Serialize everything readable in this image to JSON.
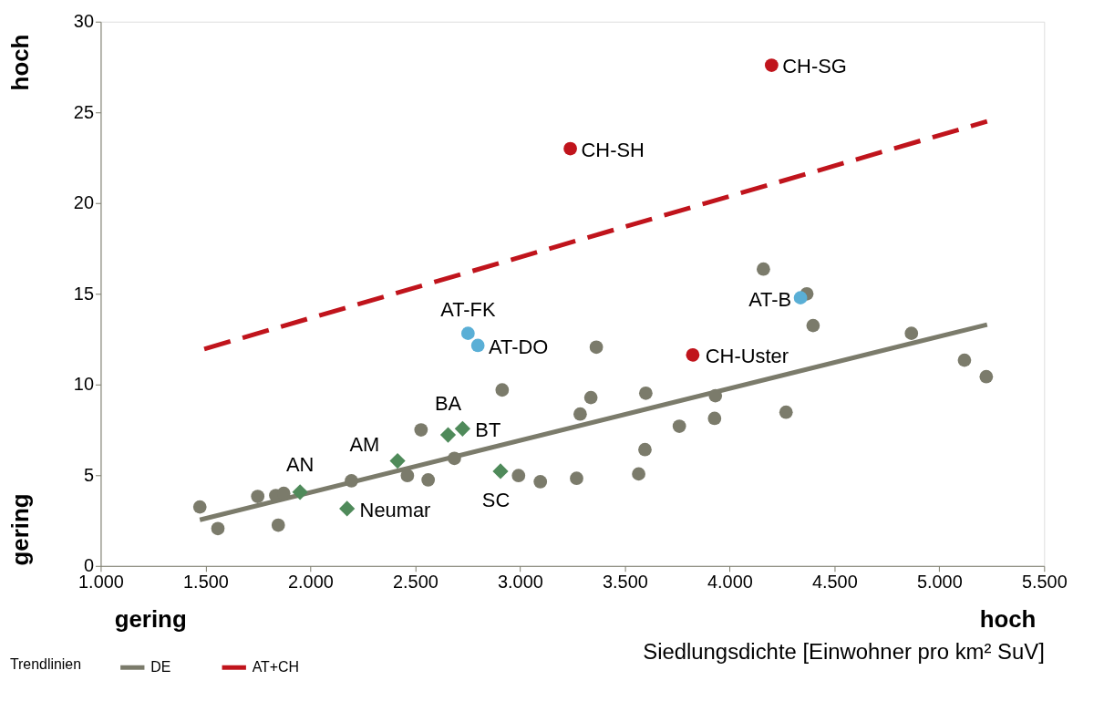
{
  "chart_data": {
    "type": "scatter",
    "xlabel": "Siedlungsdichte [Einwohner pro km² SuV]",
    "legend_title": "Trendlinien",
    "legend": "bottom left",
    "grid": false,
    "xlim": [
      1000,
      5500
    ],
    "xticks": [
      {
        "value": 1000,
        "label": "1.000"
      },
      {
        "value": 1500,
        "label": "1.500"
      },
      {
        "value": 2000,
        "label": "2.000"
      },
      {
        "value": 2500,
        "label": "2.500"
      },
      {
        "value": 3000,
        "label": "3.000"
      },
      {
        "value": 3500,
        "label": "3.500"
      },
      {
        "value": 4000,
        "label": "4.000"
      },
      {
        "value": 4500,
        "label": "4.500"
      },
      {
        "value": 5000,
        "label": "5.000"
      },
      {
        "value": 5500,
        "label": "5.500"
      }
    ],
    "ylim": [
      0,
      30
    ],
    "yticks": [
      0,
      5,
      10,
      15,
      20,
      25,
      30
    ],
    "series": [
      {
        "marker": "circle",
        "color": "#7b7b6b",
        "x": [
          1473,
          1559,
          1749,
          1835,
          1873,
          1847,
          2196,
          2463,
          2562,
          2528,
          2687,
          2915,
          2993,
          3097,
          3270,
          3287,
          3338,
          3364,
          3566,
          3596,
          3600,
          3760,
          3928,
          3932,
          4161,
          4269,
          4368,
          4398,
          4867,
          5120,
          5224
        ],
        "values": [
          3.25,
          2.06,
          3.83,
          3.88,
          4.0,
          2.25,
          4.69,
          4.98,
          4.74,
          7.5,
          5.93,
          9.7,
          4.98,
          4.64,
          4.83,
          8.37,
          9.28,
          12.06,
          5.07,
          6.41,
          9.52,
          7.7,
          8.13,
          9.38,
          16.36,
          8.47,
          15.0,
          13.25,
          12.82,
          11.34,
          10.43
        ]
      },
      {
        "marker": "circle",
        "color": "#5aafd6",
        "x": [
          2752,
          2799,
          4338
        ],
        "values": [
          12.82,
          12.15,
          14.78
        ]
      },
      {
        "marker": "circle",
        "color": "#c0141c",
        "x": [
          4200,
          3240,
          3824
        ],
        "values": [
          27.6,
          23.0,
          11.63
        ]
      },
      {
        "marker": "diamond",
        "color": "#4f8a5a",
        "x": [
          1951,
          2175,
          2416,
          2657,
          2726,
          2907
        ],
        "values": [
          4.07,
          3.16,
          5.79,
          7.22,
          7.56,
          5.22
        ]
      },
      {
        "type": "line",
        "name": "DE",
        "color": "#7b7b6b",
        "line_style": "solid",
        "x": [
          1473,
          5228
        ],
        "values": [
          2.54,
          13.3
        ]
      },
      {
        "type": "line",
        "name": "AT+CH",
        "color": "#c0141c",
        "line_style": "dashed",
        "x": [
          1494,
          5228
        ],
        "values": [
          11.96,
          24.5
        ]
      }
    ],
    "annotations": [
      "hoch",
      "gering",
      "gering",
      "hoch",
      {
        "text": "CH-SG",
        "x": 4200,
        "y": 27.6
      },
      {
        "text": "CH-SH",
        "x": 3240,
        "y": 23.0
      },
      {
        "text": "AT-FK",
        "x": 2752,
        "y": 12.82
      },
      {
        "text": "AT-DO",
        "x": 2799,
        "y": 12.15
      },
      {
        "text": "AT-B",
        "x": 4338,
        "y": 14.78
      },
      {
        "text": "CH-Uster",
        "x": 3824,
        "y": 11.63
      },
      {
        "text": "AN",
        "x": 1951,
        "y": 4.07
      },
      {
        "text": "AM",
        "x": 2416,
        "y": 5.79
      },
      {
        "text": "BA",
        "x": 2657,
        "y": 7.22
      },
      {
        "text": "BT",
        "x": 2726,
        "y": 7.56
      },
      {
        "text": "SC",
        "x": 2907,
        "y": 5.22
      },
      {
        "text": "Neumar",
        "x": 2175,
        "y": 3.16
      }
    ]
  }
}
